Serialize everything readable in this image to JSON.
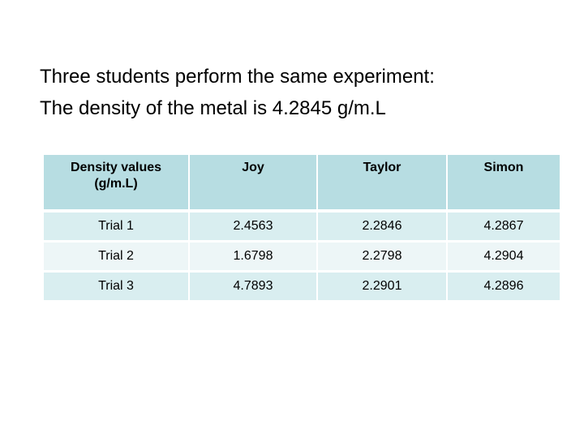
{
  "intro": {
    "line1": "Three students perform the same experiment:",
    "line2": "The density of the metal is 4.2845 g/m.L"
  },
  "table": {
    "header_label_line1": "Density values",
    "header_label_line2": "(g/m.L)",
    "students": [
      "Joy",
      "Taylor",
      "Simon"
    ],
    "rows": [
      {
        "trial": "Trial 1",
        "values": [
          "2.4563",
          "2.2846",
          "4.2867"
        ]
      },
      {
        "trial": "Trial 2",
        "values": [
          "1.6798",
          "2.2798",
          "4.2904"
        ]
      },
      {
        "trial": "Trial 3",
        "values": [
          "4.7893",
          "2.2901",
          "4.2896"
        ]
      }
    ]
  },
  "colors": {
    "header_bg": "#b7dde2",
    "row_bg_odd": "#d9eef0",
    "row_bg_even": "#edf6f7"
  }
}
